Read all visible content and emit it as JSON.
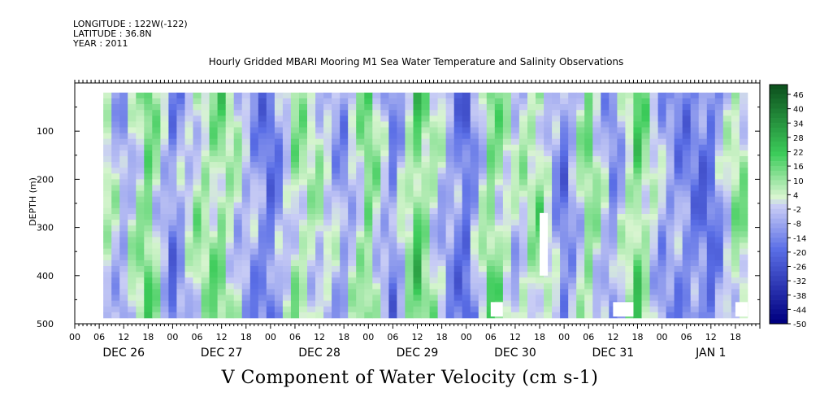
{
  "meta": {
    "longitude": "LONGITUDE : 122W(-122)",
    "latitude": "LATITUDE : 36.8N",
    "year": "YEAR : 2011"
  },
  "colors": {
    "strong_negative": "#000080",
    "negative": "#5a6ee6",
    "near_zero_negative": "#c8ccf5",
    "near_zero_positive": "#d8f5d0",
    "positive": "#3ccc5a",
    "strong_positive": "#0a4a1a"
  },
  "chart_data": {
    "type": "heatmap",
    "title": "Hourly Gridded MBARI Mooring M1 Sea Water Temperature and Salinity Observations",
    "xlabel": "V Component of Water Velocity (cm s-1)",
    "ylabel": "DEPTH (m)",
    "y_ticks": [
      "100",
      "200",
      "300",
      "400",
      "500"
    ],
    "y_range": [
      0,
      500
    ],
    "x_hour_ticks": [
      "00",
      "06",
      "12",
      "18",
      "00",
      "06",
      "12",
      "18",
      "00",
      "06",
      "12",
      "18",
      "00",
      "06",
      "12",
      "18",
      "00",
      "06",
      "12",
      "18",
      "00",
      "06",
      "12",
      "18",
      "00",
      "06",
      "12",
      "18"
    ],
    "x_day_labels": [
      "DEC 26",
      "DEC 27",
      "DEC 28",
      "DEC 29",
      "DEC 30",
      "DEC 31",
      "JAN  1"
    ],
    "colorbar_labels": [
      "46",
      "40",
      "34",
      "28",
      "22",
      "16",
      "10",
      "4",
      "-2",
      "-8",
      "-14",
      "-20",
      "-26",
      "-32",
      "-38",
      "-44",
      "-50"
    ],
    "colorbar_range": [
      -50,
      50
    ],
    "pattern_by_6h_column": [
      -12,
      8,
      -8,
      14,
      -15,
      4,
      10,
      -6,
      -18,
      6,
      2,
      -10,
      12,
      -14,
      16,
      -4,
      -20,
      12,
      -2,
      8,
      -16,
      10,
      -12,
      14,
      -8,
      -14,
      -18,
      6
    ],
    "missing_data_regions": [
      "DEC 30 18h-20h, 270-400 m",
      "DEC 30 06h-09h, 455-485 m",
      "DEC 31 12h-18h, 455-485 m",
      "JAN 1 18h-24h, 455-485 m"
    ]
  }
}
